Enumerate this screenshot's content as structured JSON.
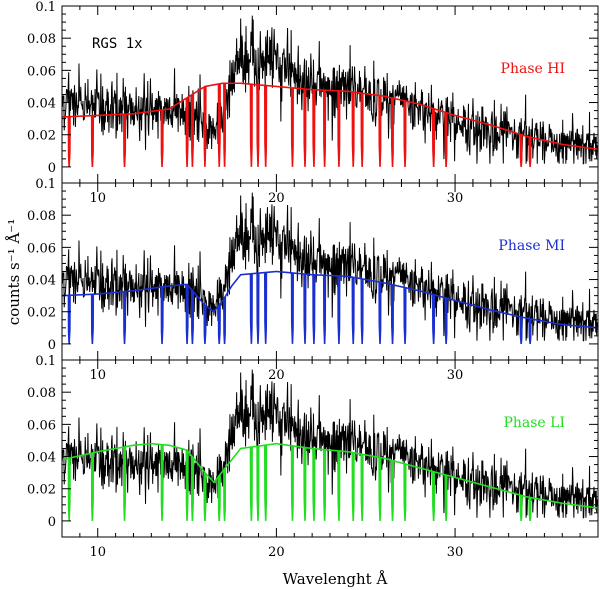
{
  "chart_data": {
    "type": "line",
    "xlabel": "Wavelenght Å",
    "ylabel": "counts s⁻¹ Å⁻¹",
    "xlim": [
      8,
      38
    ],
    "ylim": [
      -0.01,
      0.1
    ],
    "xticks": [
      10,
      20,
      30
    ],
    "yticks": [
      0,
      0.02,
      0.04,
      0.06,
      0.08,
      0.1
    ],
    "ytick_labels": [
      "0",
      "0.02",
      "0.04",
      "0.06",
      "0.08",
      "0.1"
    ],
    "annotation": "RGS 1x",
    "data_series": {
      "name": "RGS 1x spectrum",
      "color": "#000000",
      "x": [
        8,
        9,
        10,
        11,
        12,
        13,
        14,
        15,
        16,
        16.5,
        17,
        17.5,
        18,
        18.5,
        19,
        19.5,
        20,
        21,
        22,
        23,
        24,
        25,
        26,
        27,
        28,
        29,
        30,
        31,
        32,
        33,
        34,
        35,
        36,
        37,
        38
      ],
      "y": [
        0.041,
        0.039,
        0.038,
        0.037,
        0.037,
        0.036,
        0.035,
        0.034,
        0.028,
        0.021,
        0.034,
        0.05,
        0.065,
        0.07,
        0.06,
        0.072,
        0.066,
        0.055,
        0.048,
        0.045,
        0.05,
        0.046,
        0.044,
        0.04,
        0.037,
        0.032,
        0.028,
        0.026,
        0.024,
        0.021,
        0.018,
        0.016,
        0.014,
        0.013,
        0.012
      ]
    },
    "panels": [
      {
        "label": "Phase HI",
        "color": "#ee1111",
        "model": {
          "x": [
            8,
            10,
            12,
            14,
            15,
            16,
            16.5,
            17,
            18,
            20,
            22,
            24,
            26,
            28,
            30,
            32,
            34,
            36,
            38
          ],
          "y": [
            0.031,
            0.032,
            0.033,
            0.036,
            0.043,
            0.05,
            0.051,
            0.052,
            0.052,
            0.05,
            0.048,
            0.047,
            0.044,
            0.039,
            0.032,
            0.026,
            0.019,
            0.014,
            0.011
          ]
        }
      },
      {
        "label": "Phase MI",
        "color": "#1a2fd0",
        "model": {
          "x": [
            8,
            10,
            12,
            14,
            15,
            16,
            16.5,
            17,
            17.5,
            18,
            20,
            22,
            24,
            26,
            28,
            30,
            32,
            34,
            36,
            38
          ],
          "y": [
            0.03,
            0.031,
            0.033,
            0.036,
            0.037,
            0.024,
            0.02,
            0.027,
            0.036,
            0.043,
            0.045,
            0.043,
            0.042,
            0.038,
            0.033,
            0.027,
            0.021,
            0.016,
            0.012,
            0.01
          ]
        }
      },
      {
        "label": "Phase LI",
        "color": "#22dd22",
        "model": {
          "x": [
            8,
            10,
            12,
            13,
            14,
            15,
            16,
            16.5,
            17,
            18,
            20,
            22,
            24,
            26,
            28,
            30,
            32,
            34,
            36,
            38
          ],
          "y": [
            0.038,
            0.043,
            0.047,
            0.048,
            0.047,
            0.044,
            0.03,
            0.024,
            0.031,
            0.045,
            0.048,
            0.045,
            0.043,
            0.039,
            0.033,
            0.027,
            0.021,
            0.015,
            0.011,
            0.008
          ]
        }
      }
    ],
    "absorption_lines": [
      8.4,
      9.7,
      11.5,
      13.6,
      15.0,
      15.3,
      16.0,
      16.8,
      17.1,
      18.6,
      18.97,
      19.4,
      20.9,
      21.6,
      22.1,
      22.7,
      23.5,
      24.3,
      24.8,
      25.8,
      26.5,
      27.2,
      28.8,
      29.5,
      33.7,
      34.2
    ]
  }
}
